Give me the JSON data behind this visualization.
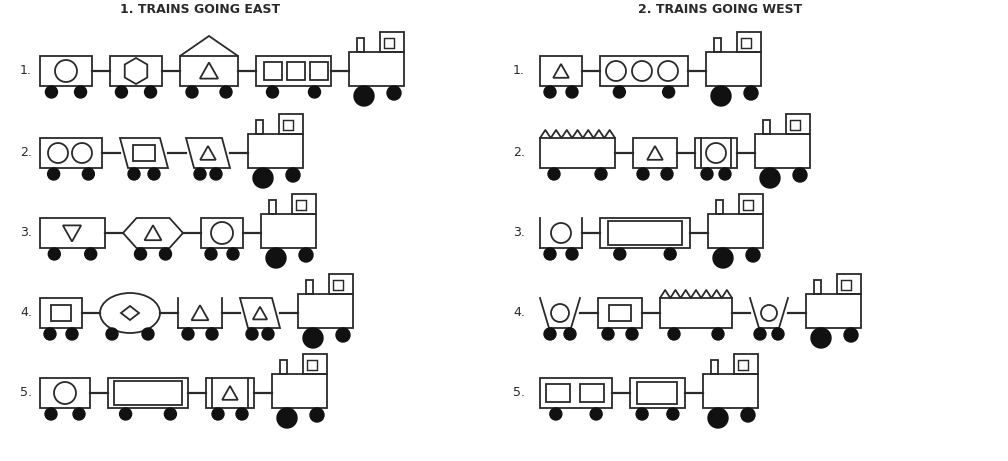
{
  "title_east": "1. TRAINS GOING EAST",
  "title_west": "2. TRAINS GOING WEST",
  "bg_color": "#ffffff",
  "line_color": "#2a2a2a",
  "lw": 1.3,
  "wheel_color": "#111111",
  "figsize": [
    10.08,
    4.61
  ],
  "dpi": 100
}
